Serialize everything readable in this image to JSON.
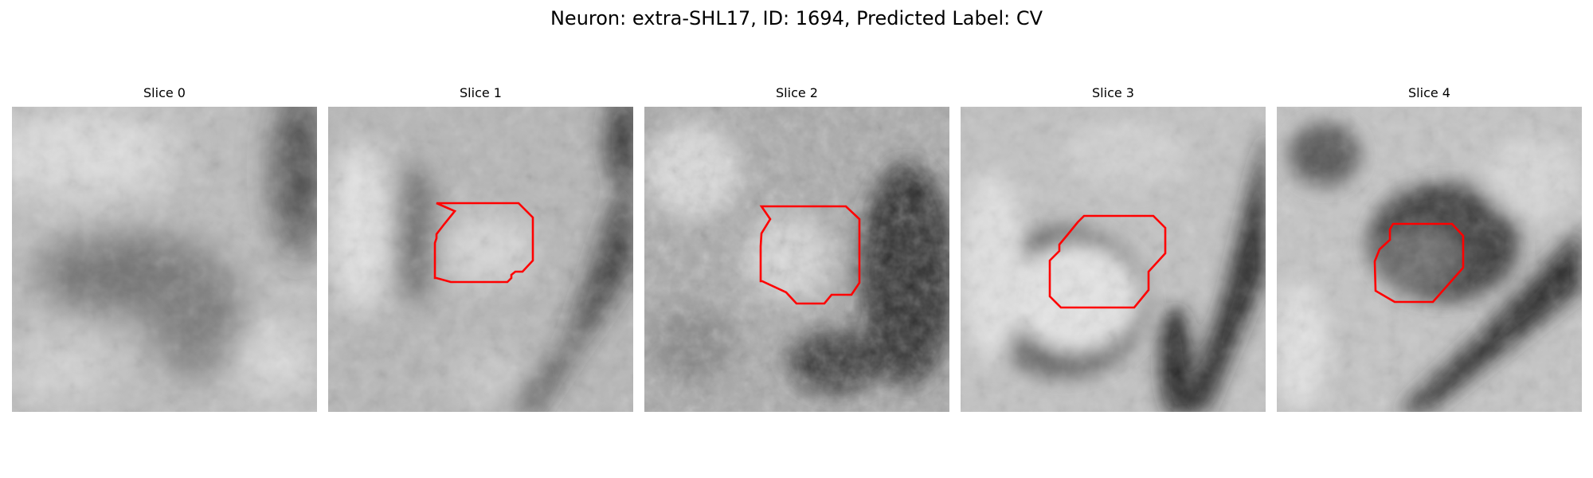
{
  "title": "Neuron: extra-SHL17, ID: 1694, Predicted Label: CV",
  "contour_color": "#ff0000",
  "colormap": "gray",
  "slices": [
    {
      "label": "Slice 0",
      "has_contour": false
    },
    {
      "label": "Slice 1",
      "has_contour": true
    },
    {
      "label": "Slice 2",
      "has_contour": true
    },
    {
      "label": "Slice 3",
      "has_contour": true
    },
    {
      "label": "Slice 4",
      "has_contour": true
    }
  ]
}
